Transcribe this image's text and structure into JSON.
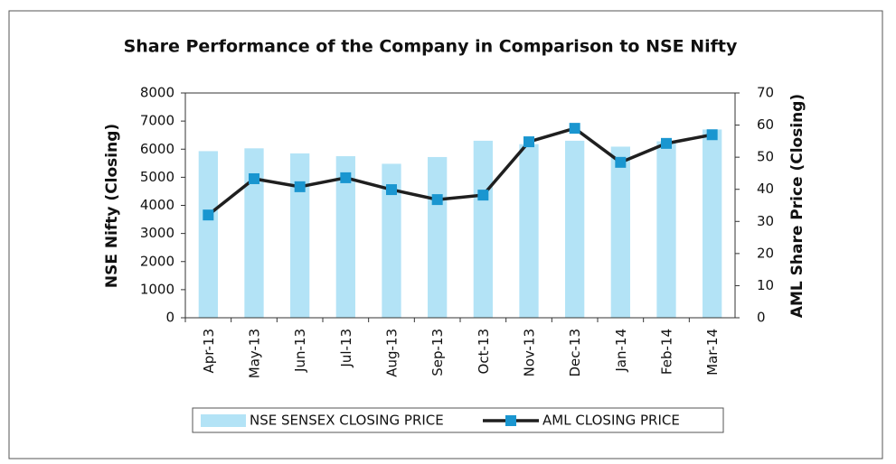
{
  "chart_data": {
    "type": "bar_line",
    "title": "Share Performance of the Company in Comparison to NSE Nifty",
    "y_label": "NSE  Nifty  (Closing)",
    "y2_label": "AML  Share Price  (Closing)",
    "categories": [
      "Apr-13",
      "May-13",
      "Jun-13",
      "Jul-13",
      "Aug-13",
      "Sep-13",
      "Oct-13",
      "Nov-13",
      "Dec-13",
      "Jan-14",
      "Feb-14",
      "Mar-14"
    ],
    "series": [
      {
        "name": "NSE SENSEX CLOSING PRICE",
        "color": "#b3e3f6",
        "type": "bar",
        "values": [
          5930,
          6030,
          5850,
          5750,
          5480,
          5720,
          6300,
          6180,
          6300,
          6090,
          6280,
          6700
        ]
      },
      {
        "name": "AML CLOSING PRICE",
        "color": "#1f1f1f",
        "marker_color": "#1a96d0",
        "type": "line",
        "axis": "y2",
        "values": [
          32,
          43.3,
          40.8,
          43.6,
          39.9,
          36.8,
          38.2,
          54.8,
          59,
          48.4,
          54.3,
          57
        ]
      }
    ],
    "ylim": [
      0,
      8000
    ],
    "yticks": [
      0,
      1000,
      2000,
      3000,
      4000,
      5000,
      6000,
      7000,
      8000
    ],
    "y2lim": [
      0,
      70
    ],
    "y2ticks": [
      0,
      10,
      20,
      30,
      40,
      50,
      60,
      70
    ],
    "legend": "bottom"
  }
}
